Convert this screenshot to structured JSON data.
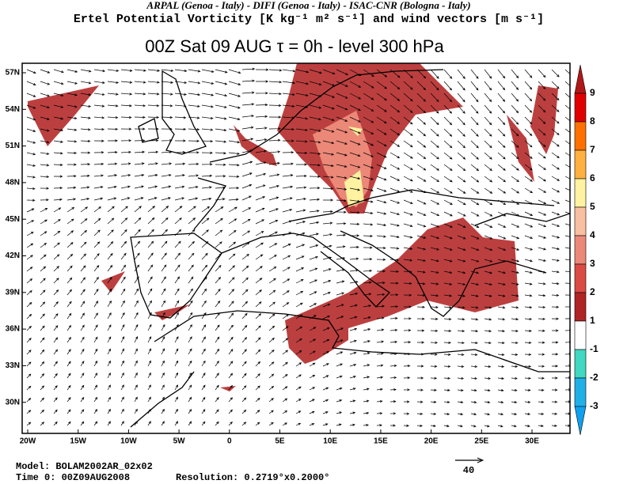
{
  "header": {
    "line1": "ARPAL (Genoa - Italy)  -  DIFI (Genoa - Italy)  -  ISAC-CNR (Bologna - Italy)",
    "line2": "Ertel Potential Vorticity [K kg⁻¹ m² s⁻¹] and wind vectors [m s⁻¹]",
    "title": "00Z Sat 09 AUG   τ = 0h   -   level 300 hPa"
  },
  "map": {
    "lat_labels": [
      "57N",
      "54N",
      "51N",
      "48N",
      "45N",
      "42N",
      "39N",
      "36N",
      "33N",
      "30N"
    ],
    "lon_labels": [
      "20W",
      "15W",
      "10W",
      "5W",
      "0",
      "5E",
      "10E",
      "15E",
      "20E",
      "25E",
      "30E"
    ]
  },
  "colorbar": {
    "labels": [
      "9",
      "8",
      "7",
      "6",
      "5",
      "4",
      "3",
      "2",
      "1",
      "-1",
      "-2",
      "-3"
    ],
    "colors": [
      "#b01818",
      "#e00000",
      "#ff7000",
      "#ffb040",
      "#fff2a0",
      "#f8c0a0",
      "#ec8878",
      "#dc4a44",
      "#b02424",
      "#ffffff",
      "#40d8c0",
      "#20b0e8",
      "#10a0f0"
    ]
  },
  "footer": {
    "model": "Model: BOLAM2002AR_02x02",
    "time": "Time 0: 00Z09AUG2008",
    "resolution": "Resolution: 0.2719°x0.2000°",
    "vector_scale": "40"
  }
}
